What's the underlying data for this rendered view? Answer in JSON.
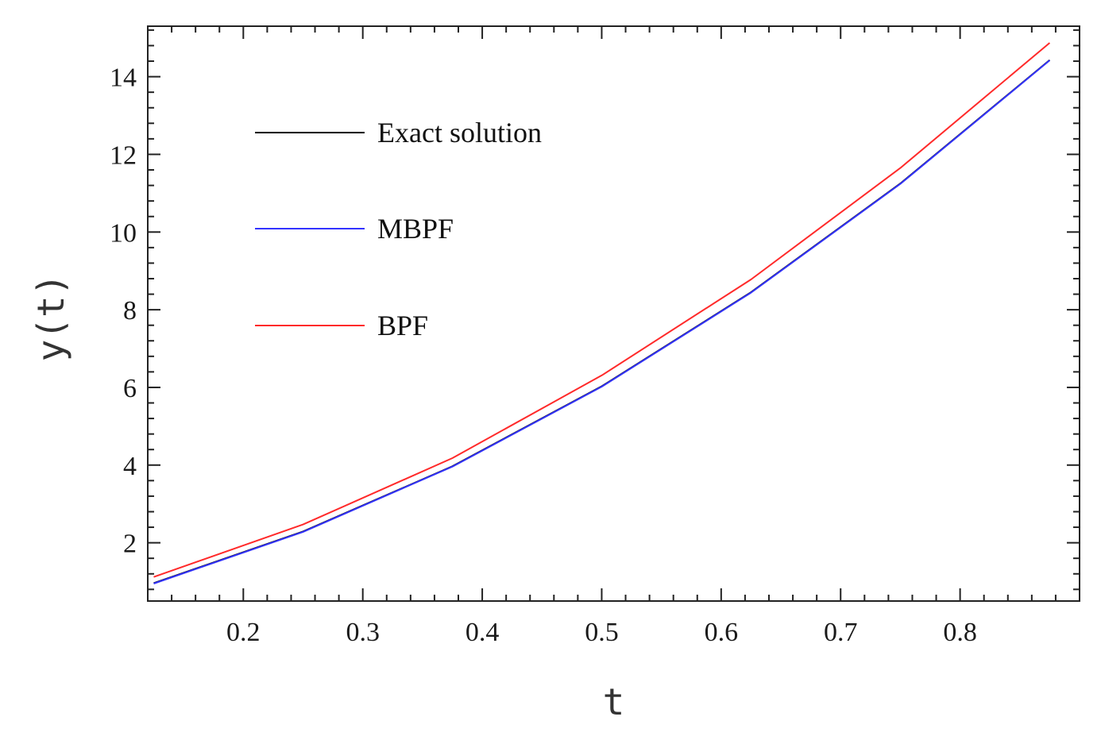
{
  "chart_data": {
    "type": "line",
    "xlabel": "t",
    "ylabel": "y(t)",
    "xlim": [
      0.12,
      0.9
    ],
    "ylim": [
      0.5,
      15.3
    ],
    "x_ticks": [
      0.2,
      0.3,
      0.4,
      0.5,
      0.6,
      0.7,
      0.8
    ],
    "x_tick_labels": [
      "0.2",
      "0.3",
      "0.4",
      "0.5",
      "0.6",
      "0.7",
      "0.8"
    ],
    "y_ticks": [
      2,
      4,
      6,
      8,
      10,
      12,
      14
    ],
    "y_tick_labels": [
      "2",
      "4",
      "6",
      "8",
      "10",
      "12",
      "14"
    ],
    "grid": false,
    "legend_position": "top-left",
    "x": [
      0.125,
      0.25,
      0.375,
      0.5,
      0.625,
      0.75,
      0.875
    ],
    "series": [
      {
        "name": "Exact solution",
        "color": "#000000",
        "values": [
          0.96,
          2.29,
          3.97,
          6.03,
          8.45,
          11.25,
          14.43
        ]
      },
      {
        "name": "MBPF",
        "color": "#3333ff",
        "values": [
          0.95,
          2.28,
          3.96,
          6.02,
          8.44,
          11.24,
          14.42
        ]
      },
      {
        "name": "BPF",
        "color": "#ff2a2a",
        "values": [
          1.12,
          2.47,
          4.18,
          6.31,
          8.78,
          11.65,
          14.87
        ]
      }
    ]
  }
}
